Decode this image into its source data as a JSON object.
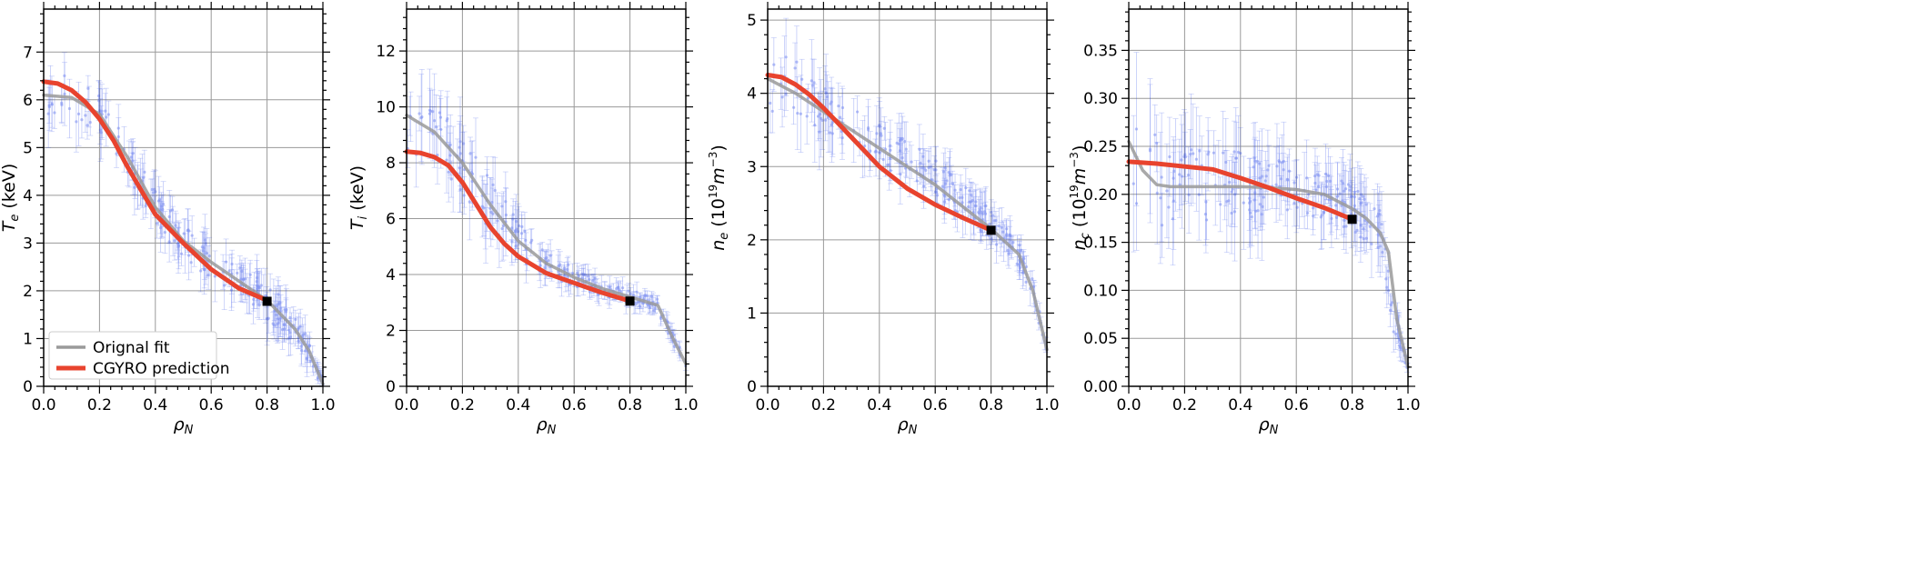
{
  "figure": {
    "xlabel_symbol": "ρ",
    "xlabel_sub": "N"
  },
  "colors": {
    "orig": "#9a9a9a",
    "pred": "#e8432e",
    "points": "#1f3fe6",
    "marker": "#000000",
    "grid": "#9a9a9a"
  },
  "legend": {
    "orig_label": "Orignal fit",
    "pred_label": "CGYRO prediction"
  },
  "chart_data": [
    {
      "id": "Te",
      "type": "line",
      "ylabel": "T_e (keV)",
      "ylabel_parts": {
        "symbol": "T",
        "sub": "e",
        "unit": " (keV)"
      },
      "xlim": [
        0.0,
        1.0
      ],
      "ylim": [
        0,
        7.9
      ],
      "xticks": [
        "0.0",
        "0.2",
        "0.4",
        "0.6",
        "0.8",
        "1.0"
      ],
      "yticks": [
        "0",
        "1",
        "2",
        "3",
        "4",
        "5",
        "6",
        "7"
      ],
      "series": [
        {
          "name": "Orignal fit",
          "x": [
            0,
            0.1,
            0.2,
            0.3,
            0.4,
            0.5,
            0.6,
            0.7,
            0.8,
            0.9,
            0.95,
            1.0
          ],
          "y": [
            6.1,
            6.05,
            5.7,
            4.8,
            3.75,
            3.05,
            2.6,
            2.2,
            1.8,
            1.2,
            0.75,
            0.05
          ]
        },
        {
          "name": "CGYRO prediction",
          "x": [
            0,
            0.05,
            0.1,
            0.15,
            0.2,
            0.25,
            0.3,
            0.35,
            0.4,
            0.5,
            0.6,
            0.7,
            0.8
          ],
          "y": [
            6.38,
            6.34,
            6.2,
            5.95,
            5.6,
            5.15,
            4.6,
            4.1,
            3.6,
            3.0,
            2.45,
            2.05,
            1.8
          ]
        }
      ],
      "endpoint": {
        "x": 0.8,
        "y": 1.78
      },
      "scatter_band": {
        "x": [
          0.0,
          0.1,
          0.2,
          0.3,
          0.4,
          0.5,
          0.6,
          0.7,
          0.8,
          0.9,
          0.95,
          1.0
        ],
        "center": [
          6.1,
          6.05,
          5.7,
          4.8,
          3.75,
          3.05,
          2.6,
          2.2,
          1.8,
          1.2,
          0.75,
          0.05
        ],
        "spread": [
          0.6,
          0.6,
          0.55,
          0.5,
          0.45,
          0.5,
          0.45,
          0.45,
          0.5,
          0.4,
          0.3,
          0.1
        ]
      },
      "has_legend": true
    },
    {
      "id": "Ti",
      "type": "line",
      "ylabel": "T_i (keV)",
      "ylabel_parts": {
        "symbol": "T",
        "sub": "i",
        "unit": " (keV)"
      },
      "xlim": [
        0.0,
        1.0
      ],
      "ylim": [
        0,
        13.5
      ],
      "xticks": [
        "0.0",
        "0.2",
        "0.4",
        "0.6",
        "0.8",
        "1.0"
      ],
      "yticks": [
        "0",
        "2",
        "4",
        "6",
        "8",
        "10",
        "12"
      ],
      "series": [
        {
          "name": "Orignal fit",
          "x": [
            0,
            0.1,
            0.2,
            0.3,
            0.4,
            0.5,
            0.6,
            0.7,
            0.8,
            0.9,
            0.95,
            1.0
          ],
          "y": [
            9.7,
            9.1,
            8.0,
            6.5,
            5.2,
            4.4,
            3.9,
            3.5,
            3.2,
            2.9,
            1.8,
            0.8
          ]
        },
        {
          "name": "CGYRO prediction",
          "x": [
            0,
            0.05,
            0.1,
            0.15,
            0.2,
            0.25,
            0.3,
            0.35,
            0.4,
            0.5,
            0.6,
            0.7,
            0.8
          ],
          "y": [
            8.4,
            8.35,
            8.2,
            7.9,
            7.3,
            6.5,
            5.7,
            5.1,
            4.65,
            4.05,
            3.7,
            3.35,
            3.05
          ]
        }
      ],
      "endpoint": {
        "x": 0.8,
        "y": 3.05
      },
      "scatter_band": {
        "x": [
          0.0,
          0.1,
          0.2,
          0.3,
          0.4,
          0.5,
          0.6,
          0.7,
          0.8,
          0.9,
          0.95,
          1.0
        ],
        "center": [
          9.7,
          9.1,
          8.0,
          6.5,
          5.2,
          4.4,
          3.9,
          3.5,
          3.2,
          2.9,
          1.8,
          0.8
        ],
        "spread": [
          1.5,
          1.5,
          1.4,
          1.2,
          0.9,
          0.6,
          0.4,
          0.35,
          0.35,
          0.3,
          0.3,
          0.15
        ]
      },
      "has_legend": false
    },
    {
      "id": "ne",
      "type": "line",
      "ylabel": "n_e (10^19 m^-3)",
      "ylabel_parts": {
        "symbol": "n",
        "sub": "e",
        "unit_a": " (10",
        "sup1": "19",
        "unit_b": "m",
        "sup2": "−3",
        "unit_c": ")"
      },
      "xlim": [
        0.0,
        1.0
      ],
      "ylim": [
        0,
        5.15
      ],
      "xticks": [
        "0.0",
        "0.2",
        "0.4",
        "0.6",
        "0.8",
        "1.0"
      ],
      "yticks": [
        "0",
        "1",
        "2",
        "3",
        "4",
        "5"
      ],
      "series": [
        {
          "name": "Orignal fit",
          "x": [
            0,
            0.1,
            0.2,
            0.3,
            0.4,
            0.5,
            0.6,
            0.7,
            0.8,
            0.9,
            0.95,
            1.0
          ],
          "y": [
            4.2,
            4.0,
            3.75,
            3.5,
            3.25,
            3.0,
            2.75,
            2.45,
            2.15,
            1.8,
            1.3,
            0.5
          ]
        },
        {
          "name": "CGYRO prediction",
          "x": [
            0,
            0.05,
            0.1,
            0.15,
            0.2,
            0.25,
            0.3,
            0.35,
            0.4,
            0.5,
            0.6,
            0.7,
            0.8
          ],
          "y": [
            4.25,
            4.22,
            4.12,
            3.98,
            3.8,
            3.6,
            3.4,
            3.2,
            3.0,
            2.7,
            2.48,
            2.3,
            2.13
          ]
        }
      ],
      "endpoint": {
        "x": 0.8,
        "y": 2.13
      },
      "scatter_band": {
        "x": [
          0.0,
          0.1,
          0.2,
          0.3,
          0.4,
          0.5,
          0.6,
          0.7,
          0.8,
          0.9,
          0.95,
          1.0
        ],
        "center": [
          4.2,
          4.05,
          3.8,
          3.55,
          3.3,
          3.1,
          2.85,
          2.55,
          2.2,
          1.8,
          1.3,
          0.5
        ],
        "spread": [
          0.55,
          0.5,
          0.45,
          0.4,
          0.35,
          0.35,
          0.3,
          0.3,
          0.25,
          0.2,
          0.2,
          0.1
        ]
      },
      "has_legend": false
    },
    {
      "id": "nc",
      "type": "line",
      "ylabel": "n_c (10^19 m^-3)",
      "ylabel_parts": {
        "symbol": "n",
        "sub": "c",
        "unit_a": " (10",
        "sup1": "19",
        "unit_b": "m",
        "sup2": "−3",
        "unit_c": ")"
      },
      "xlim": [
        0.0,
        1.0
      ],
      "ylim": [
        0,
        0.393
      ],
      "xticks": [
        "0.0",
        "0.2",
        "0.4",
        "0.6",
        "0.8",
        "1.0"
      ],
      "yticks": [
        "0.00",
        "0.05",
        "0.10",
        "0.15",
        "0.20",
        "0.25",
        "0.30",
        "0.35"
      ],
      "series": [
        {
          "name": "Orignal fit",
          "x": [
            0,
            0.05,
            0.1,
            0.15,
            0.2,
            0.3,
            0.4,
            0.5,
            0.6,
            0.7,
            0.8,
            0.85,
            0.9,
            0.93,
            0.96,
            1.0
          ],
          "y": [
            0.255,
            0.225,
            0.21,
            0.208,
            0.208,
            0.208,
            0.208,
            0.207,
            0.205,
            0.2,
            0.185,
            0.175,
            0.16,
            0.14,
            0.07,
            0.02
          ]
        },
        {
          "name": "CGYRO prediction",
          "x": [
            0,
            0.1,
            0.2,
            0.3,
            0.4,
            0.5,
            0.6,
            0.7,
            0.8
          ],
          "y": [
            0.234,
            0.232,
            0.229,
            0.226,
            0.217,
            0.207,
            0.196,
            0.186,
            0.174
          ]
        }
      ],
      "endpoint": {
        "x": 0.8,
        "y": 0.174
      },
      "scatter_band": {
        "x": [
          0.0,
          0.1,
          0.2,
          0.3,
          0.4,
          0.5,
          0.6,
          0.7,
          0.8,
          0.9,
          0.95,
          1.0
        ],
        "center": [
          0.25,
          0.215,
          0.21,
          0.21,
          0.21,
          0.207,
          0.205,
          0.2,
          0.185,
          0.16,
          0.07,
          0.02
        ],
        "spread": [
          0.08,
          0.06,
          0.05,
          0.045,
          0.045,
          0.04,
          0.035,
          0.03,
          0.03,
          0.03,
          0.02,
          0.005
        ]
      },
      "has_legend": false
    }
  ]
}
